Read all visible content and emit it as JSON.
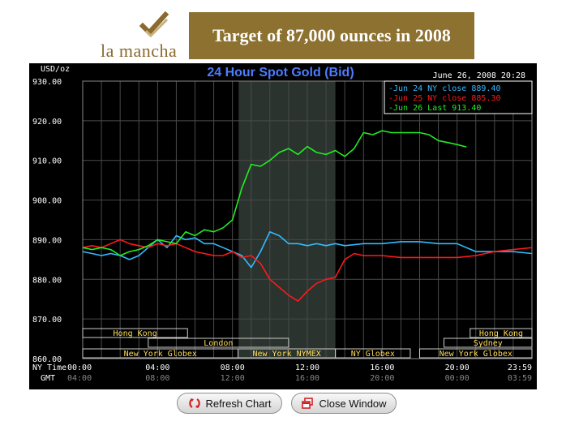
{
  "header": {
    "logo_text": "la mancha",
    "banner_text": "Target of 87,000 ounces in 2008"
  },
  "buttons": {
    "refresh_label": "Refresh Chart",
    "close_label": "Close Window"
  },
  "colors": {
    "chart_background": "#000000",
    "session_shade": "#2a332e",
    "jun24": "#33bbff",
    "jun25": "#ff1a1a",
    "jun26": "#22ee22",
    "session_label": "#ffdd55",
    "banner": "#8d7130"
  },
  "chart_data": {
    "type": "line",
    "title": "24 Hour Spot Gold (Bid)",
    "timestamp": "June 26, 2008 20:28",
    "ylabel": "USD/oz",
    "ylim": [
      860,
      930
    ],
    "y_ticks": [
      "930.00",
      "920.00",
      "910.00",
      "900.00",
      "890.00",
      "880.00",
      "870.00",
      "860.00"
    ],
    "grid": true,
    "legend_position": "top-right",
    "x_row_labels": [
      "NY Time",
      "GMT"
    ],
    "x_ticks_ny": [
      "00:00",
      "04:00",
      "08:00",
      "12:00",
      "16:00",
      "20:00",
      "23:59"
    ],
    "x_ticks_gmt": [
      "04:00",
      "08:00",
      "12:00",
      "16:00",
      "20:00",
      "00:00",
      "03:59"
    ],
    "xlim": [
      0,
      24
    ],
    "shaded_session": [
      8.33,
      13.5
    ],
    "sessions": [
      {
        "label": "Hong Kong",
        "start": 0,
        "end": 5.6,
        "row": 0
      },
      {
        "label": "Hong Kong",
        "start": 20.7,
        "end": 24,
        "row": 0
      },
      {
        "label": "London",
        "start": 3.5,
        "end": 11.0,
        "row": 1
      },
      {
        "label": "Sydney",
        "start": 19.3,
        "end": 24,
        "row": 1
      },
      {
        "label": "New York Globex",
        "start": 0,
        "end": 8.3,
        "row": 2
      },
      {
        "label": "New York NYMEX",
        "start": 8.3,
        "end": 13.5,
        "row": 2
      },
      {
        "label": "NY Globex",
        "start": 13.5,
        "end": 17.5,
        "row": 2
      },
      {
        "label": "New York Globex",
        "start": 18.0,
        "end": 24,
        "row": 2
      }
    ],
    "series": [
      {
        "name": "Jun 24 NY close 889.40",
        "x": [
          0,
          0.5,
          1,
          1.5,
          2,
          2.5,
          3,
          3.5,
          4,
          4.5,
          5,
          5.5,
          6,
          6.5,
          7,
          7.5,
          8,
          8.5,
          9,
          9.5,
          10,
          10.5,
          11,
          11.5,
          12,
          12.5,
          13,
          13.5,
          14,
          15,
          16,
          17,
          18,
          19,
          20,
          21,
          22,
          23,
          24
        ],
        "y": [
          887,
          886.5,
          886,
          886.5,
          886,
          885,
          886,
          888,
          890,
          888,
          891,
          890,
          890.5,
          889,
          889,
          888,
          887,
          886,
          883,
          887,
          892,
          891,
          889,
          889,
          888.5,
          889,
          888.5,
          889,
          888.5,
          889,
          889,
          889.5,
          889.5,
          889,
          889,
          887,
          887,
          887,
          886.5
        ]
      },
      {
        "name": "Jun 25 NY close 885.30",
        "x": [
          0,
          0.5,
          1,
          1.5,
          2,
          2.5,
          3,
          3.5,
          4,
          4.5,
          5,
          5.5,
          6,
          6.5,
          7,
          7.5,
          8,
          8.5,
          9,
          9.5,
          10,
          10.5,
          11,
          11.5,
          12,
          12.5,
          13,
          13.5,
          14,
          14.5,
          15,
          16,
          17,
          18,
          19,
          20,
          21,
          22,
          23,
          24
        ],
        "y": [
          888,
          888.5,
          888,
          889,
          890,
          889,
          888.5,
          888,
          889,
          888.5,
          889,
          888,
          887,
          886.5,
          886,
          886,
          887,
          885.5,
          886,
          884,
          880,
          878,
          876,
          874.5,
          877,
          879,
          880,
          880.5,
          885,
          886.5,
          886,
          886,
          885.5,
          885.5,
          885.5,
          885.5,
          886,
          887,
          887.5,
          888
        ]
      },
      {
        "name": "Jun 26 Last 913.40",
        "x": [
          0,
          0.5,
          1,
          1.5,
          2,
          2.5,
          3,
          3.5,
          4,
          4.5,
          5,
          5.5,
          6,
          6.5,
          7,
          7.5,
          8,
          8.5,
          9,
          9.5,
          10,
          10.5,
          11,
          11.5,
          12,
          12.5,
          13,
          13.5,
          14,
          14.5,
          15,
          15.5,
          16,
          16.5,
          17,
          17.5,
          18,
          18.5,
          19,
          19.5,
          20,
          20.5
        ],
        "y": [
          888,
          887.5,
          888,
          887.5,
          886,
          887,
          887.5,
          888.5,
          890,
          889.5,
          889,
          892,
          891,
          892.5,
          892,
          893,
          895,
          903,
          909,
          908.5,
          910,
          912,
          913,
          911.5,
          913.5,
          912,
          911.5,
          912.5,
          911,
          913,
          917,
          916.5,
          917.5,
          917,
          917,
          917,
          917,
          916.5,
          915,
          914.5,
          914,
          913.4
        ]
      }
    ]
  }
}
